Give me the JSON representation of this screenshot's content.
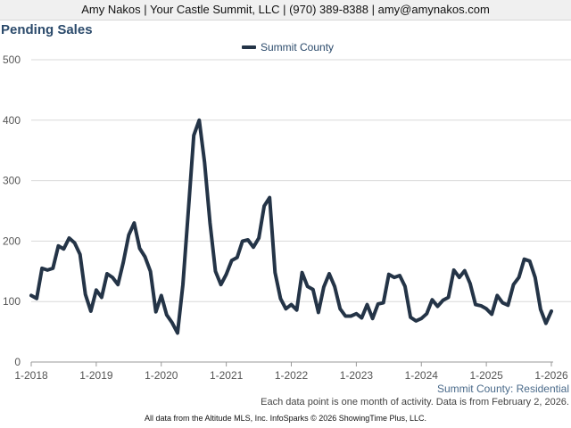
{
  "header": {
    "contact": "Amy Nakos | Your Castle Summit, LLC | (970) 389-8388 | amy@amynakos.com"
  },
  "page_title": "Pending Sales",
  "captions": {
    "region": "Summit County: Residential",
    "note": "Each data point is one month of activity. Data is from February 2, 2026.",
    "footer": "All data from the Altitude MLS, Inc. InfoSparks © 2026 ShowingTime Plus, LLC."
  },
  "colors": {
    "line": "#243447",
    "title": "#2b4a6b",
    "grid": "#d9d9d9"
  },
  "chart_data": {
    "type": "line",
    "title": "Pending Sales",
    "legend_position": "top-center",
    "grid": true,
    "ylim": [
      0,
      500
    ],
    "yticks": [
      0,
      100,
      200,
      300,
      400,
      500
    ],
    "xlim": [
      0,
      96
    ],
    "xticks": [
      {
        "label": "1-2018",
        "x": 0
      },
      {
        "label": "1-2019",
        "x": 12
      },
      {
        "label": "1-2020",
        "x": 24
      },
      {
        "label": "1-2021",
        "x": 36
      },
      {
        "label": "1-2022",
        "x": 48
      },
      {
        "label": "1-2023",
        "x": 60
      },
      {
        "label": "1-2024",
        "x": 72
      },
      {
        "label": "1-2025",
        "x": 84
      },
      {
        "label": "1-2026",
        "x": 96
      }
    ],
    "series": [
      {
        "name": "Summit County",
        "values": [
          110,
          105,
          155,
          152,
          155,
          192,
          187,
          205,
          197,
          178,
          112,
          84,
          119,
          107,
          146,
          140,
          128,
          165,
          210,
          230,
          188,
          174,
          150,
          83,
          110,
          78,
          65,
          48,
          128,
          250,
          375,
          400,
          330,
          230,
          150,
          128,
          145,
          168,
          173,
          200,
          202,
          190,
          205,
          258,
          272,
          148,
          105,
          88,
          95,
          86,
          148,
          125,
          120,
          82,
          124,
          146,
          125,
          88,
          76,
          76,
          80,
          73,
          95,
          72,
          96,
          98,
          145,
          140,
          143,
          125,
          74,
          68,
          72,
          80,
          103,
          92,
          102,
          107,
          152,
          140,
          151,
          130,
          95,
          93,
          88,
          79,
          110,
          98,
          94,
          128,
          140,
          170,
          167,
          140,
          87,
          64,
          84
        ]
      }
    ]
  }
}
